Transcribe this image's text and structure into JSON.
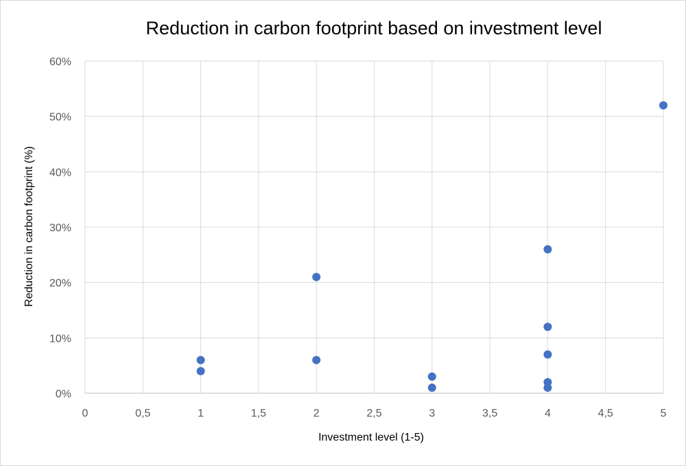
{
  "chart_data": {
    "type": "scatter",
    "title": "Reduction in carbon footprint based on investment level",
    "xlabel": "Investment level (1-5)",
    "ylabel": "Reduction in carbon footprint (%)",
    "xlim": [
      0,
      5
    ],
    "ylim": [
      0,
      0.6
    ],
    "x_ticks": [
      "0",
      "0,5",
      "1",
      "1,5",
      "2",
      "2,5",
      "3",
      "3,5",
      "4",
      "4,5",
      "5"
    ],
    "y_ticks": [
      "0%",
      "10%",
      "20%",
      "30%",
      "40%",
      "50%",
      "60%"
    ],
    "grid": true,
    "point_color": "#4472C4",
    "points": [
      {
        "x": 1,
        "y": 0.06
      },
      {
        "x": 1,
        "y": 0.04
      },
      {
        "x": 2,
        "y": 0.21
      },
      {
        "x": 2,
        "y": 0.06
      },
      {
        "x": 3,
        "y": 0.03
      },
      {
        "x": 3,
        "y": 0.01
      },
      {
        "x": 4,
        "y": 0.26
      },
      {
        "x": 4,
        "y": 0.12
      },
      {
        "x": 4,
        "y": 0.07
      },
      {
        "x": 4,
        "y": 0.02
      },
      {
        "x": 4,
        "y": 0.01
      },
      {
        "x": 5,
        "y": 0.52
      }
    ]
  }
}
